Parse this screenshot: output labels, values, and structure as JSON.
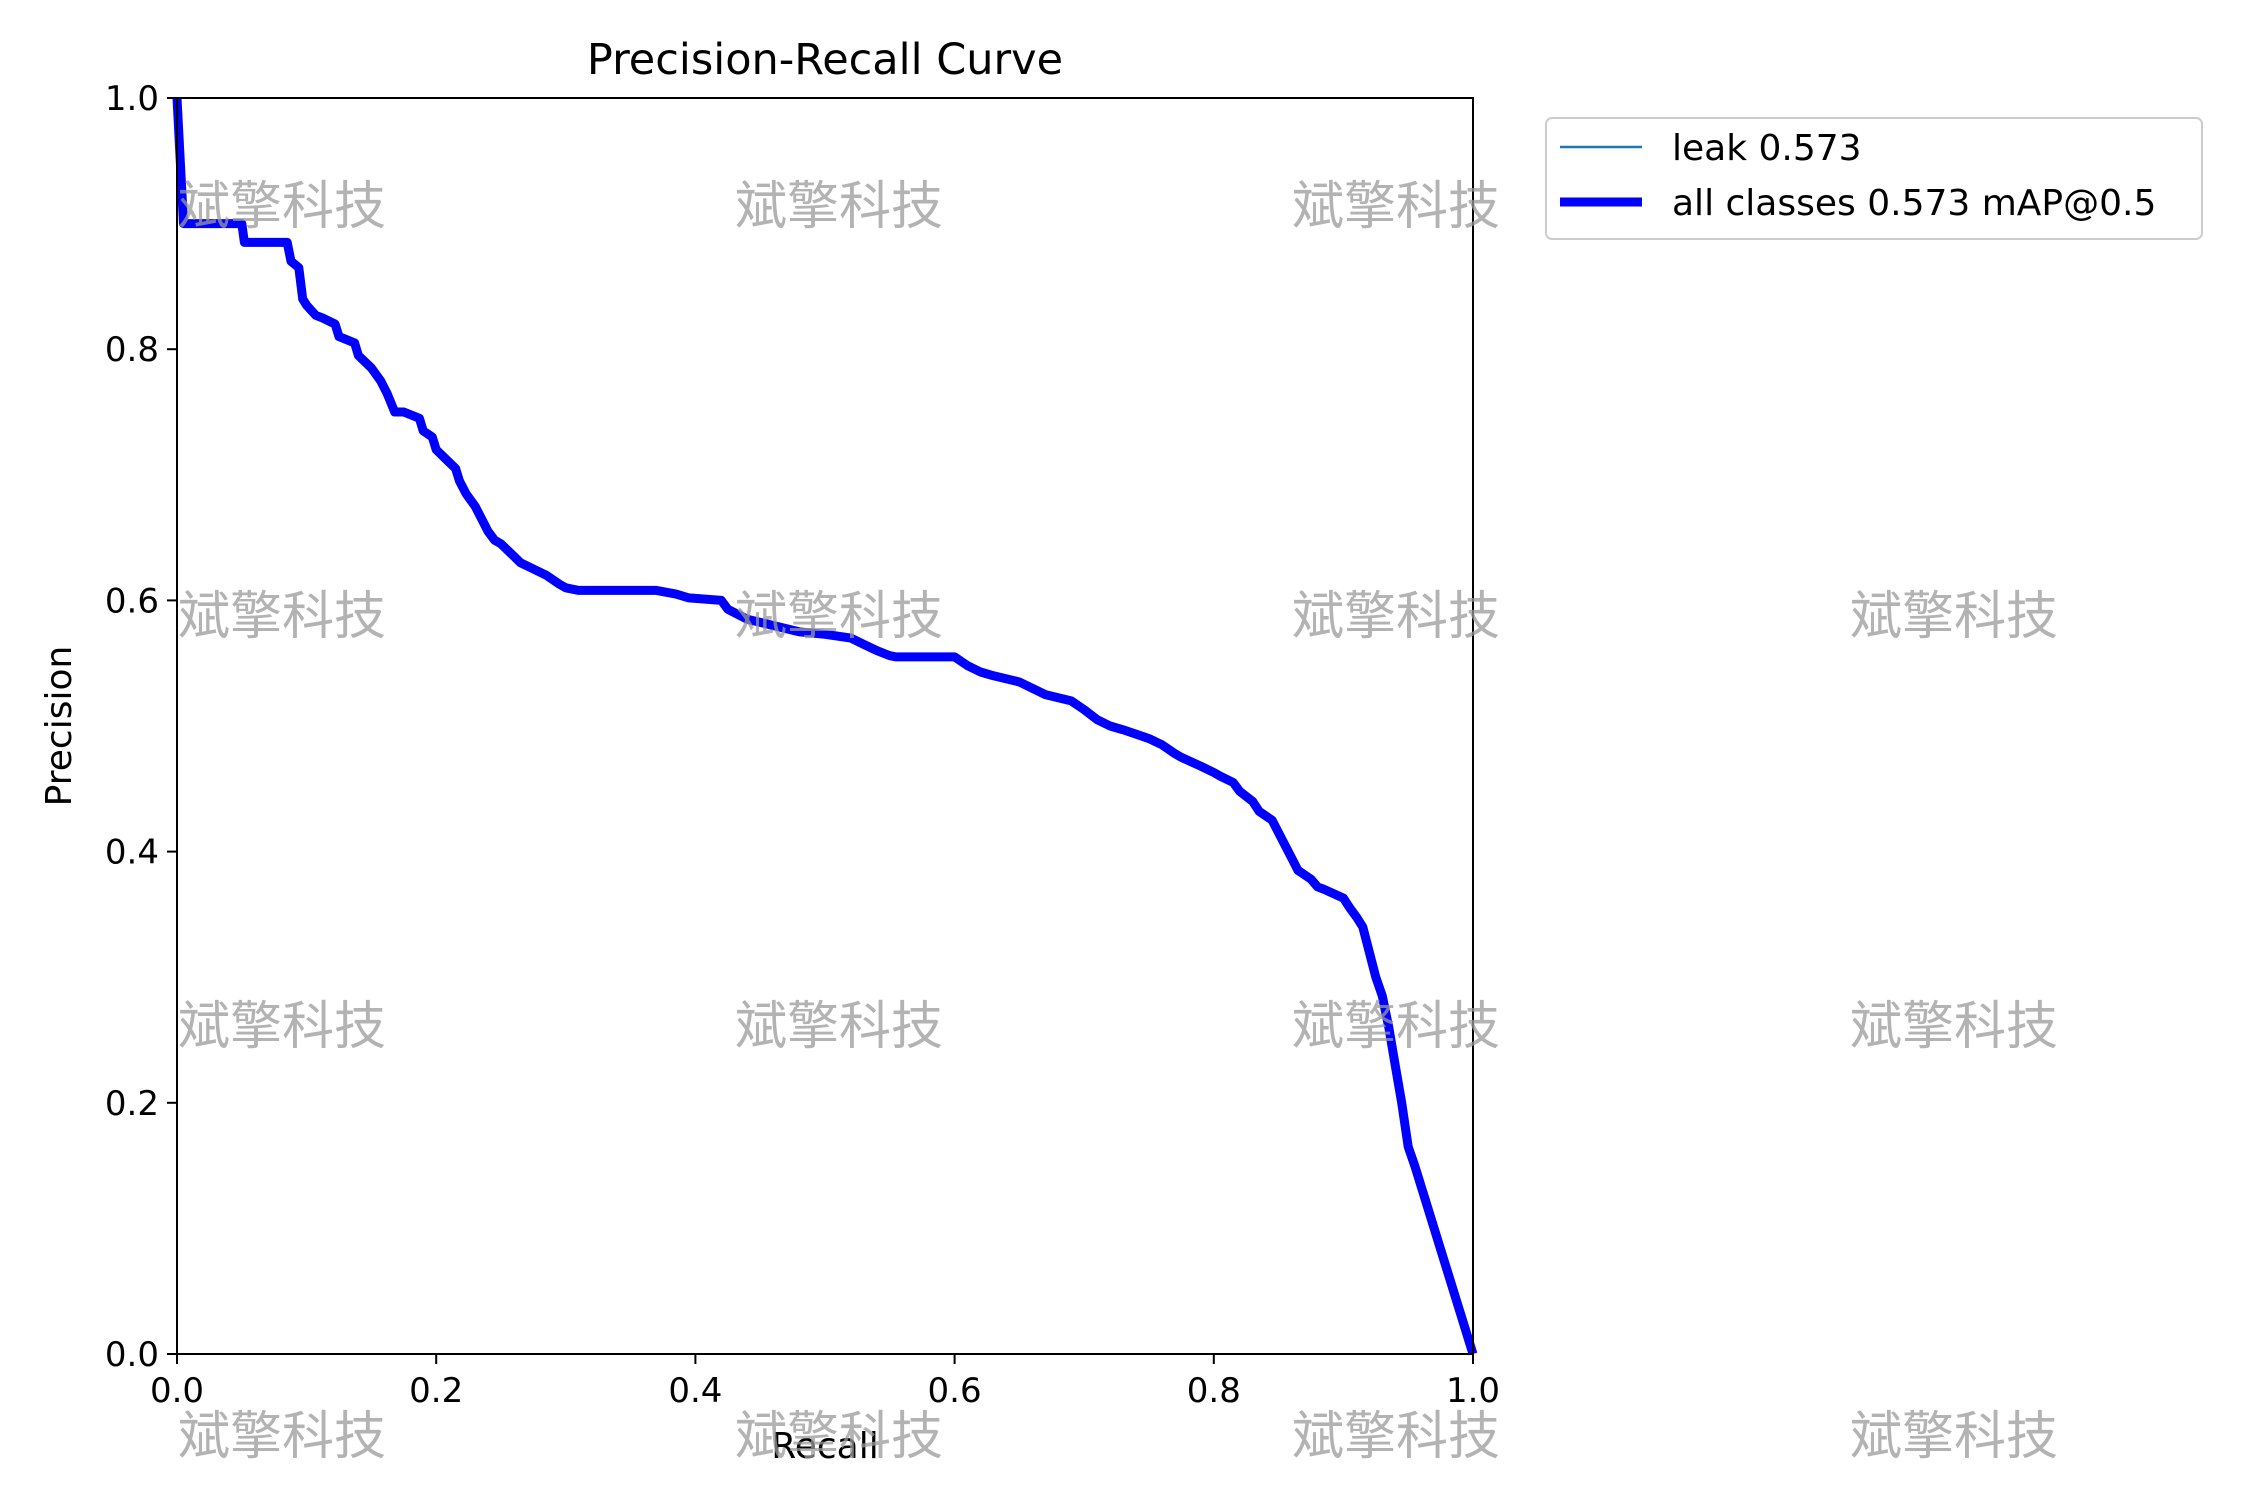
{
  "chart_data": {
    "type": "line",
    "title": "Precision-Recall Curve",
    "xlabel": "Recall",
    "ylabel": "Precision",
    "xlim": [
      0,
      1
    ],
    "ylim": [
      0,
      1
    ],
    "xticks": [
      "0.0",
      "0.2",
      "0.4",
      "0.6",
      "0.8",
      "1.0"
    ],
    "yticks": [
      "0.0",
      "0.2",
      "0.4",
      "0.6",
      "0.8",
      "1.0"
    ],
    "grid": false,
    "legend_position": "outside-top-right",
    "series": [
      {
        "name": "leak 0.573",
        "color": "#1f77b4",
        "style": "thin",
        "x": [
          0.0,
          0.005,
          0.006,
          0.05,
          0.052,
          0.085,
          0.088,
          0.094,
          0.097,
          0.1,
          0.107,
          0.112,
          0.122,
          0.125,
          0.137,
          0.14,
          0.15,
          0.157,
          0.162,
          0.168,
          0.175,
          0.187,
          0.19,
          0.197,
          0.2,
          0.205,
          0.215,
          0.218,
          0.223,
          0.23,
          0.235,
          0.24,
          0.245,
          0.25,
          0.26,
          0.265,
          0.275,
          0.285,
          0.295,
          0.3,
          0.31,
          0.31,
          0.37,
          0.385,
          0.395,
          0.42,
          0.425,
          0.44,
          0.46,
          0.48,
          0.5,
          0.52,
          0.53,
          0.54,
          0.55,
          0.555,
          0.6,
          0.61,
          0.62,
          0.63,
          0.65,
          0.66,
          0.67,
          0.69,
          0.7,
          0.71,
          0.72,
          0.73,
          0.75,
          0.76,
          0.77,
          0.775,
          0.79,
          0.8,
          0.805,
          0.815,
          0.82,
          0.83,
          0.835,
          0.845,
          0.85,
          0.86,
          0.865,
          0.875,
          0.88,
          0.885,
          0.9,
          0.905,
          0.91,
          0.915,
          0.92,
          0.925,
          0.93,
          0.935,
          0.94,
          0.945,
          0.95,
          0.955,
          1.0
        ],
        "y": [
          1.0,
          0.9,
          0.9,
          0.9,
          0.885,
          0.885,
          0.87,
          0.865,
          0.84,
          0.835,
          0.827,
          0.825,
          0.82,
          0.81,
          0.805,
          0.795,
          0.785,
          0.775,
          0.765,
          0.75,
          0.75,
          0.745,
          0.735,
          0.73,
          0.72,
          0.715,
          0.705,
          0.695,
          0.685,
          0.675,
          0.665,
          0.655,
          0.648,
          0.645,
          0.635,
          0.63,
          0.625,
          0.62,
          0.613,
          0.61,
          0.608,
          0.608,
          0.608,
          0.605,
          0.602,
          0.6,
          0.593,
          0.585,
          0.58,
          0.575,
          0.573,
          0.57,
          0.565,
          0.56,
          0.556,
          0.555,
          0.555,
          0.548,
          0.543,
          0.54,
          0.535,
          0.53,
          0.525,
          0.52,
          0.513,
          0.505,
          0.5,
          0.497,
          0.49,
          0.485,
          0.478,
          0.475,
          0.468,
          0.463,
          0.46,
          0.455,
          0.448,
          0.44,
          0.432,
          0.425,
          0.415,
          0.395,
          0.385,
          0.378,
          0.372,
          0.37,
          0.363,
          0.355,
          0.348,
          0.34,
          0.32,
          0.3,
          0.285,
          0.26,
          0.23,
          0.2,
          0.165,
          0.15,
          0.0
        ]
      },
      {
        "name": "all classes 0.573 mAP@0.5",
        "color": "#0000ff",
        "style": "thick",
        "x": [
          0.0,
          0.005,
          0.006,
          0.05,
          0.052,
          0.085,
          0.088,
          0.094,
          0.097,
          0.1,
          0.107,
          0.112,
          0.122,
          0.125,
          0.137,
          0.14,
          0.15,
          0.157,
          0.162,
          0.168,
          0.175,
          0.187,
          0.19,
          0.197,
          0.2,
          0.205,
          0.215,
          0.218,
          0.223,
          0.23,
          0.235,
          0.24,
          0.245,
          0.25,
          0.26,
          0.265,
          0.275,
          0.285,
          0.295,
          0.3,
          0.31,
          0.31,
          0.37,
          0.385,
          0.395,
          0.42,
          0.425,
          0.44,
          0.46,
          0.48,
          0.5,
          0.52,
          0.53,
          0.54,
          0.55,
          0.555,
          0.6,
          0.61,
          0.62,
          0.63,
          0.65,
          0.66,
          0.67,
          0.69,
          0.7,
          0.71,
          0.72,
          0.73,
          0.75,
          0.76,
          0.77,
          0.775,
          0.79,
          0.8,
          0.805,
          0.815,
          0.82,
          0.83,
          0.835,
          0.845,
          0.85,
          0.86,
          0.865,
          0.875,
          0.88,
          0.885,
          0.9,
          0.905,
          0.91,
          0.915,
          0.92,
          0.925,
          0.93,
          0.935,
          0.94,
          0.945,
          0.95,
          0.955,
          1.0
        ],
        "y": [
          1.0,
          0.9,
          0.9,
          0.9,
          0.885,
          0.885,
          0.87,
          0.865,
          0.84,
          0.835,
          0.827,
          0.825,
          0.82,
          0.81,
          0.805,
          0.795,
          0.785,
          0.775,
          0.765,
          0.75,
          0.75,
          0.745,
          0.735,
          0.73,
          0.72,
          0.715,
          0.705,
          0.695,
          0.685,
          0.675,
          0.665,
          0.655,
          0.648,
          0.645,
          0.635,
          0.63,
          0.625,
          0.62,
          0.613,
          0.61,
          0.608,
          0.608,
          0.608,
          0.605,
          0.602,
          0.6,
          0.593,
          0.585,
          0.58,
          0.575,
          0.573,
          0.57,
          0.565,
          0.56,
          0.556,
          0.555,
          0.555,
          0.548,
          0.543,
          0.54,
          0.535,
          0.53,
          0.525,
          0.52,
          0.513,
          0.505,
          0.5,
          0.497,
          0.49,
          0.485,
          0.478,
          0.475,
          0.468,
          0.463,
          0.46,
          0.455,
          0.448,
          0.44,
          0.432,
          0.425,
          0.415,
          0.395,
          0.385,
          0.378,
          0.372,
          0.37,
          0.363,
          0.355,
          0.348,
          0.34,
          0.32,
          0.3,
          0.285,
          0.26,
          0.23,
          0.2,
          0.165,
          0.15,
          0.0
        ]
      }
    ]
  },
  "watermark": {
    "text": "斌擎科技"
  }
}
